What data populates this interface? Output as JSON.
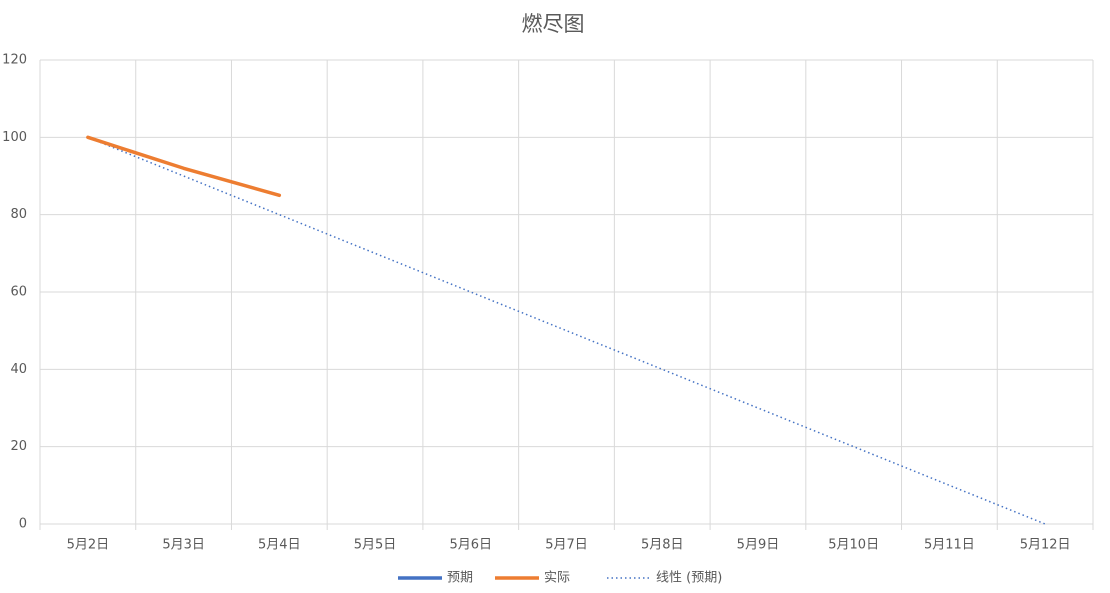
{
  "chart_data": {
    "type": "line",
    "title": "燃尽图",
    "categories": [
      "5月2日",
      "5月3日",
      "5月4日",
      "5月5日",
      "5月6日",
      "5月7日",
      "5月8日",
      "5月9日",
      "5月10日",
      "5月11日",
      "5月12日"
    ],
    "series": [
      {
        "name": "预期",
        "color": "#4472c4",
        "style": "solid",
        "values": [
          100,
          null,
          null,
          null,
          null,
          null,
          null,
          null,
          null,
          null,
          0
        ]
      },
      {
        "name": "实际",
        "color": "#ed7d31",
        "style": "solid",
        "values": [
          100,
          92,
          85,
          null,
          null,
          null,
          null,
          null,
          null,
          null,
          null
        ]
      },
      {
        "name": "线性 (预期)",
        "color": "#4472c4",
        "style": "dotted",
        "values": [
          100,
          90,
          80,
          70,
          60,
          50,
          40,
          30,
          20,
          10,
          0
        ]
      }
    ],
    "ylim": [
      0,
      120
    ],
    "yticks": [
      0,
      20,
      40,
      60,
      80,
      100,
      120
    ],
    "grid": true,
    "legend": "bottom"
  }
}
